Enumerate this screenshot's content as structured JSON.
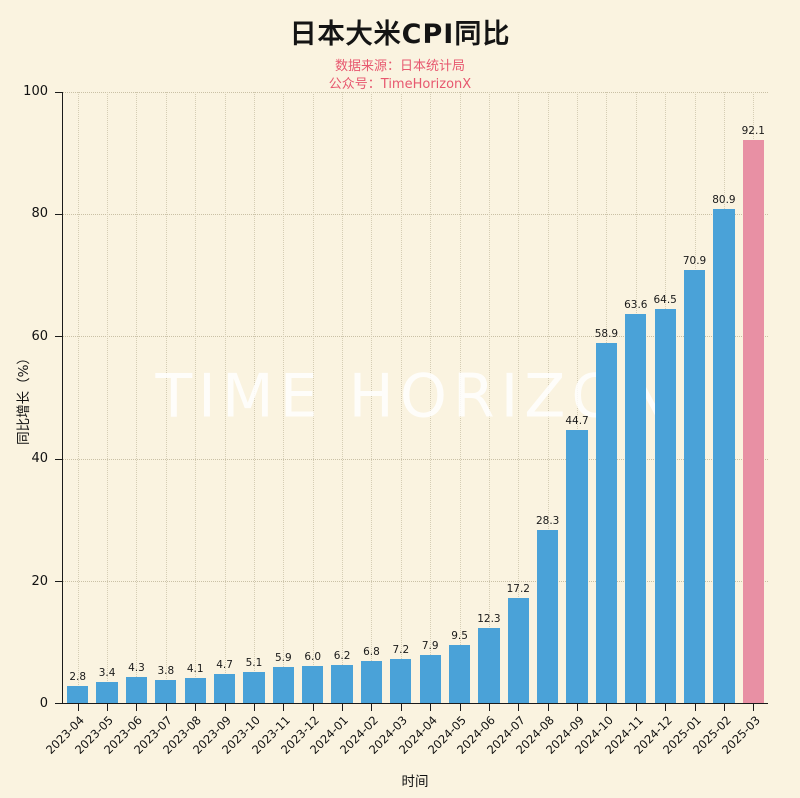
{
  "page": {
    "title": "日本大米CPI同比",
    "subtitle_source": "数据来源：日本统计局",
    "subtitle_account": "公众号：TimeHorizonX",
    "watermark": "TIME HORIZON"
  },
  "chart_data": {
    "type": "bar",
    "title": "日本大米CPI同比",
    "xlabel": "时间",
    "ylabel": "同比增长（%）",
    "ylim": [
      0,
      100
    ],
    "yticks": [
      0,
      20,
      40,
      60,
      80,
      100
    ],
    "grid": true,
    "legend": "none",
    "categories": [
      "2023-04",
      "2023-05",
      "2023-06",
      "2023-07",
      "2023-08",
      "2023-09",
      "2023-10",
      "2023-11",
      "2023-12",
      "2024-01",
      "2024-02",
      "2024-03",
      "2024-04",
      "2024-05",
      "2024-06",
      "2024-07",
      "2024-08",
      "2024-09",
      "2024-10",
      "2024-11",
      "2024-12",
      "2025-01",
      "2025-02",
      "2025-03"
    ],
    "values": [
      2.8,
      3.4,
      4.3,
      3.8,
      4.1,
      4.7,
      5.1,
      5.9,
      6.0,
      6.2,
      6.8,
      7.2,
      7.9,
      9.5,
      12.3,
      17.2,
      28.3,
      44.7,
      58.9,
      63.6,
      64.5,
      70.9,
      80.9,
      92.1
    ],
    "bar_color": "#4aa2d8",
    "highlight_color": "#e890a4",
    "highlight_index": 23,
    "background_color": "#faf3e0",
    "subtitle_color": "#e7586f"
  }
}
